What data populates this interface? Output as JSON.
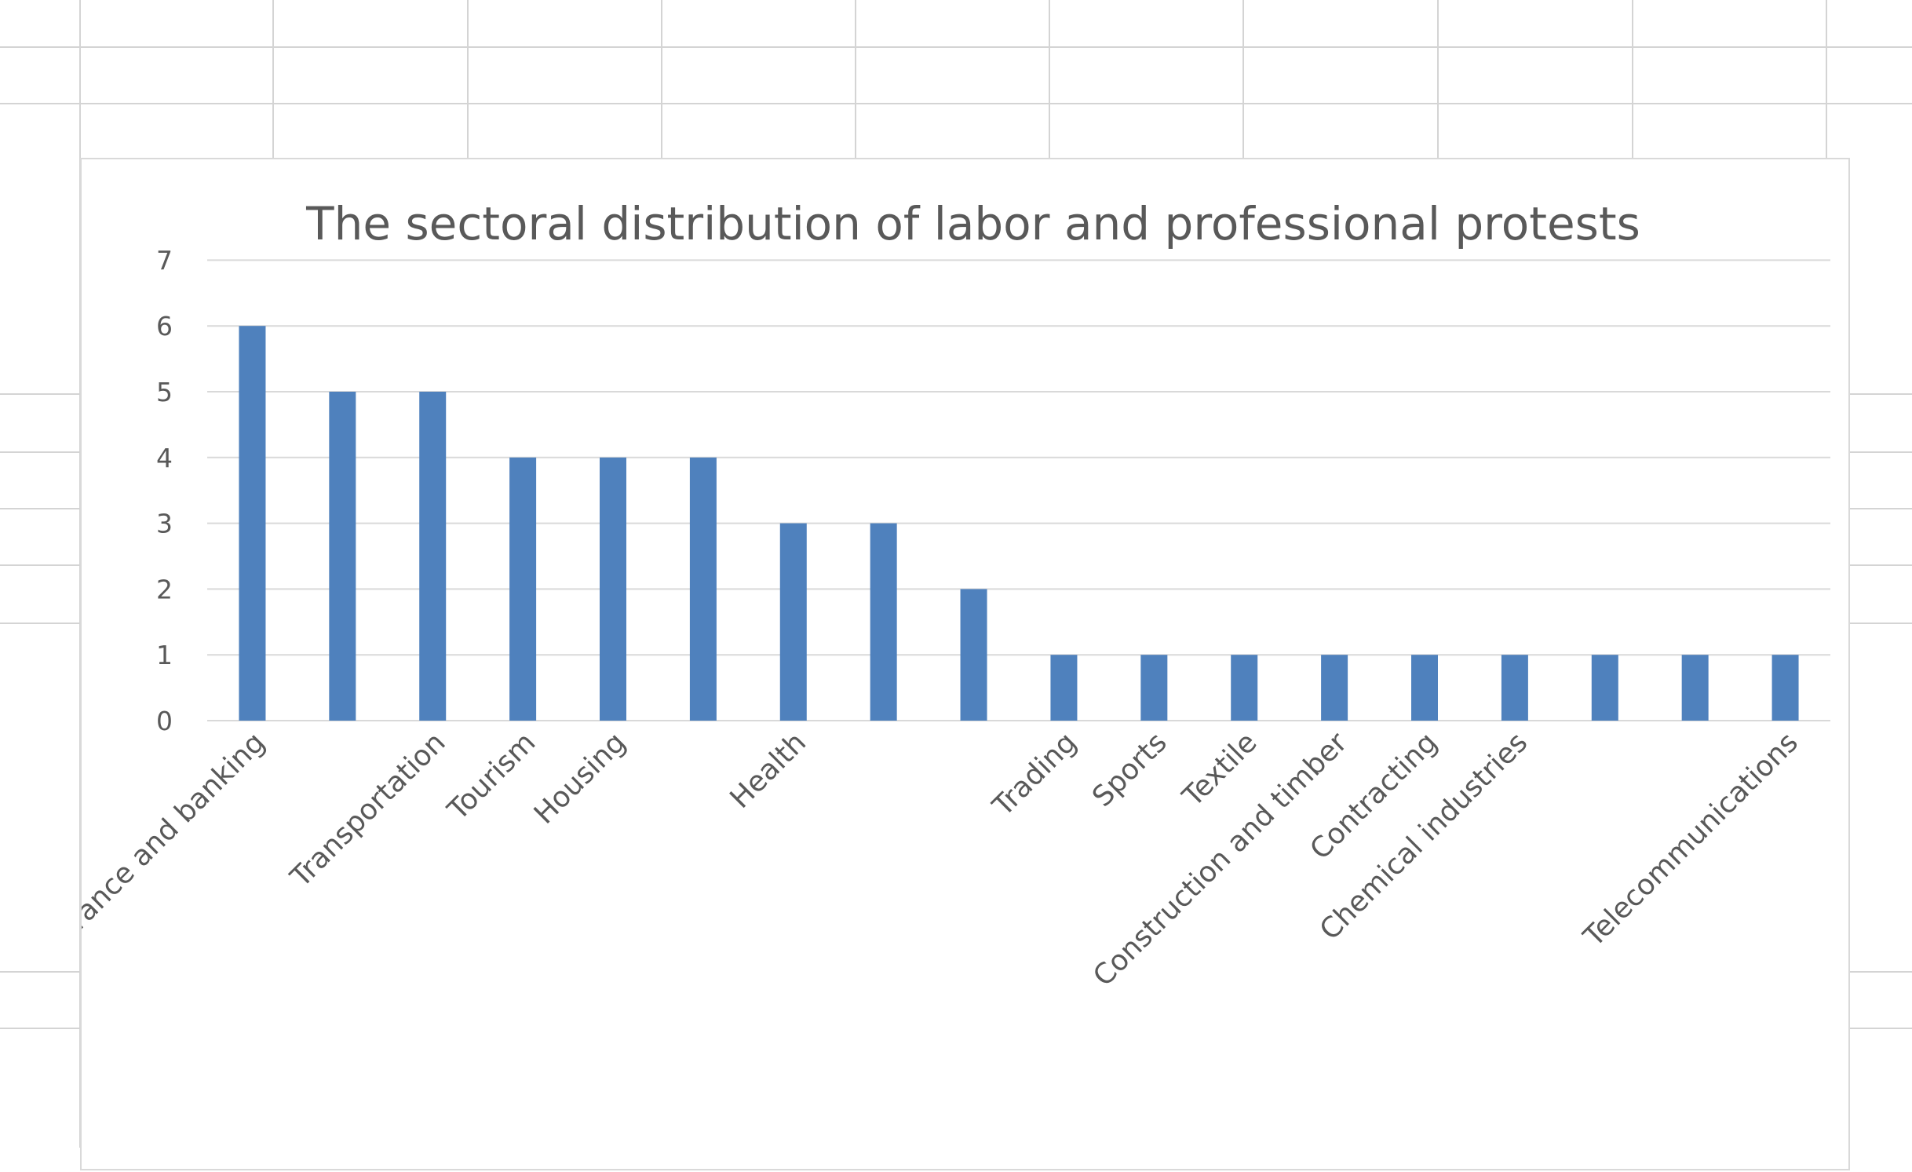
{
  "chart_data": {
    "type": "bar",
    "title": "The sectoral distribution of labor and professional protests",
    "xlabel": "",
    "ylabel": "",
    "ylim": [
      0,
      7
    ],
    "yticks": [
      0,
      1,
      2,
      3,
      4,
      5,
      6,
      7
    ],
    "grid": true,
    "legend": "none",
    "bar_color": "#4F81BD",
    "categories": [
      "Insurance and banking",
      "",
      "Transportation",
      "Tourism",
      "Housing",
      "",
      "Health",
      "",
      "",
      "Trading",
      "Sports",
      "Textile",
      "Construction and timber",
      "Contracting",
      "Chemical industries",
      "",
      "",
      "Telecommunications"
    ],
    "values": [
      6,
      5,
      5,
      4,
      4,
      4,
      3,
      3,
      2,
      1,
      1,
      1,
      1,
      1,
      1,
      1,
      1,
      1
    ]
  },
  "colors": {
    "gridline": "#d9d9d9",
    "sheet_grid": "#d4d4d4",
    "text": "#595959",
    "chart_border": "#d9d9d9"
  }
}
